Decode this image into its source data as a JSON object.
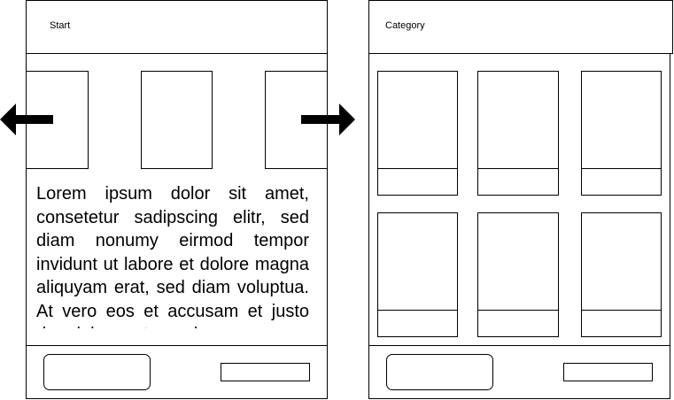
{
  "left_screen": {
    "header_title": "Start",
    "body_text": "Lorem ipsum dolor sit amet, consetetur sadipscing elitr, sed diam nonumy eirmod tempor invidunt ut labore et dolore magna aliquyam erat, sed diam voluptua. At vero eos et accusam et justo duo dolores et ea rebum."
  },
  "right_screen": {
    "header_title": "Category"
  },
  "icons": {
    "left_arrow": "arrow-left-icon",
    "right_arrow": "arrow-right-icon"
  }
}
